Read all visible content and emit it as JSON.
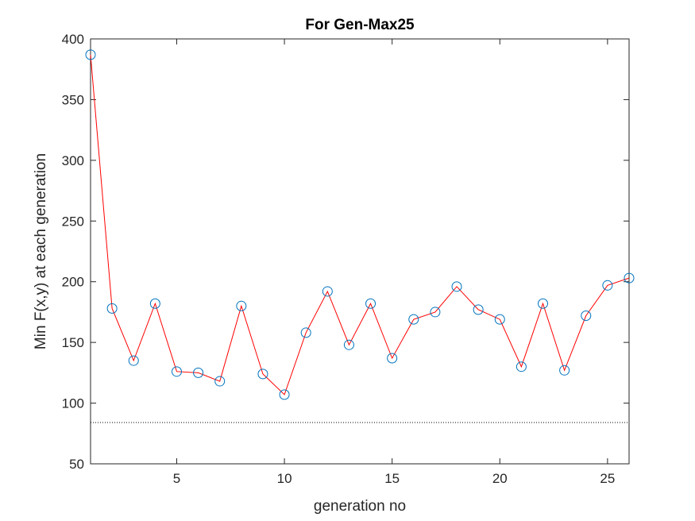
{
  "chart_data": {
    "type": "line",
    "title": "For Gen-Max25",
    "xlabel": "generation no",
    "ylabel": "Min F(x,y) at each generation",
    "xlim": [
      1,
      26
    ],
    "ylim": [
      50,
      400
    ],
    "xticks": [
      5,
      10,
      15,
      20,
      25
    ],
    "yticks": [
      50,
      100,
      150,
      200,
      250,
      300,
      350,
      400
    ],
    "grid": false,
    "x": [
      1,
      2,
      3,
      4,
      5,
      6,
      7,
      8,
      9,
      10,
      11,
      12,
      13,
      14,
      15,
      16,
      17,
      18,
      19,
      20,
      21,
      22,
      23,
      24,
      25,
      26
    ],
    "series": [
      {
        "line_color": "#ff0000",
        "marker": "circle",
        "marker_color": "#0072bd",
        "values": [
          387,
          178,
          135,
          182,
          126,
          125,
          118,
          180,
          124,
          107,
          158,
          192,
          148,
          182,
          137,
          169,
          175,
          196,
          177,
          169,
          130,
          182,
          127,
          172,
          197,
          203
        ]
      }
    ],
    "reference_line": {
      "y": 84,
      "style": "dotted",
      "color": "#000000"
    }
  }
}
